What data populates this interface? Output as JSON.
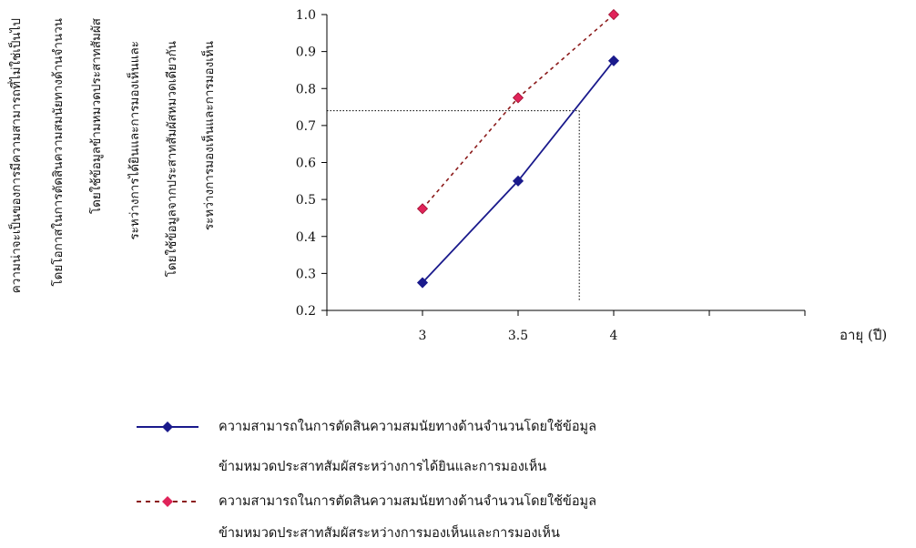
{
  "chart_data": {
    "type": "line",
    "x": [
      3,
      3.5,
      4
    ],
    "x_tick_labels": [
      "3",
      "3.5",
      "4"
    ],
    "xlim": [
      2.5,
      5
    ],
    "ylim": [
      0.2,
      1.0
    ],
    "y_ticks": [
      0.2,
      0.3,
      0.4,
      0.5,
      0.6,
      0.7,
      0.8,
      0.9,
      1.0
    ],
    "y_tick_labels": [
      "0.2",
      "0.3",
      "0.4",
      "0.5",
      "0.6",
      "0.7",
      "0.8",
      "0.9",
      "1.0"
    ],
    "xlabel": "อายุ (ปี)",
    "ylabel_lines": [
      "ความน่าจะเป็นของการมีความสามารถที่ไม่ใช่เป็นไป",
      "โดยโอกาสในการตัดสินความสมนัยทางด้านจำนวน",
      "โดยใช้ข้อมูลข้ามหมวดประสาทสัมผัส",
      "ระหว่างการได้ยินและการมองเห็นและ",
      "โดยใช้ข้อมูลจากประสาทสัมผัสหมวดเดียวกัน",
      "ระหว่างการมองเห็นและการมองเห็น"
    ],
    "series": [
      {
        "name_lines": [
          "ความสามารถในการตัดสินความสมนัยทางด้านจำนวนโดยใช้ข้อมูล",
          "ข้ามหมวดประสาทสัมผัสระหว่างการได้ยินและการมองเห็น"
        ],
        "values": [
          0.275,
          0.55,
          0.875
        ],
        "line_style": "solid",
        "line_color": "#1a1a8c",
        "marker_color": "#1a1a8c"
      },
      {
        "name_lines": [
          "ความสามารถในการตัดสินความสมนัยทางด้านจำนวนโดยใช้ข้อมูล",
          "ข้ามหมวดประสาทสัมผัสระหว่างการมองเห็นและการมองเห็น"
        ],
        "values": [
          0.475,
          0.775,
          1.0
        ],
        "line_style": "dashed",
        "line_color": "#8b1a1a",
        "marker_color": "#e0245a"
      }
    ],
    "reference_lines": [
      {
        "axis": "y",
        "value": 0.74,
        "style": "dotted"
      },
      {
        "axis": "x",
        "value": 3.82,
        "style": "dotted"
      }
    ],
    "grid": false,
    "legend_position": "bottom"
  }
}
